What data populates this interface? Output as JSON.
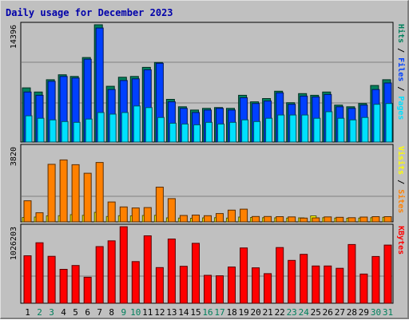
{
  "title": "Daily usage for December 2023",
  "colors": {
    "background": "#c0c0c0",
    "pages": "#00e0ff",
    "files": "#0040ff",
    "hits": "#00805c",
    "visits": "#ffff00",
    "sites": "#ff8000",
    "kbytes": "#ff0000",
    "title": "#0000aa",
    "weekend": "#00805c"
  },
  "chart_data": [
    {
      "type": "bar",
      "panel": "hits-files-pages",
      "max_label": "14396",
      "right_legend": [
        "Pages",
        "Files",
        "Hits"
      ],
      "categories": [
        "1",
        "2",
        "3",
        "4",
        "5",
        "6",
        "7",
        "8",
        "9",
        "10",
        "11",
        "12",
        "13",
        "14",
        "15",
        "16",
        "17",
        "18",
        "19",
        "20",
        "21",
        "22",
        "23",
        "24",
        "25",
        "26",
        "27",
        "28",
        "29",
        "30",
        "31"
      ],
      "ylim": [
        0,
        14396
      ],
      "series": [
        {
          "name": "Hits",
          "values": [
            6600,
            6100,
            7600,
            8200,
            8000,
            10300,
            14300,
            6800,
            7900,
            8000,
            9100,
            9700,
            5200,
            4300,
            3900,
            4100,
            4200,
            4100,
            5700,
            4900,
            5300,
            6200,
            4800,
            5900,
            5700,
            6100,
            4500,
            4300,
            4700,
            6900,
            7600
          ]
        },
        {
          "name": "Files",
          "values": [
            6100,
            5700,
            7400,
            8000,
            7800,
            10100,
            13900,
            6400,
            7500,
            7700,
            8800,
            9600,
            4900,
            4100,
            3600,
            3900,
            4100,
            3900,
            5400,
            4700,
            5000,
            6000,
            4600,
            5600,
            5500,
            5800,
            4300,
            4100,
            4500,
            6400,
            7200
          ]
        },
        {
          "name": "Pages",
          "values": [
            3200,
            2900,
            2700,
            2500,
            2400,
            2800,
            3600,
            3400,
            3600,
            4400,
            4200,
            3000,
            2300,
            2200,
            2100,
            2400,
            2200,
            2400,
            2700,
            2500,
            2900,
            3300,
            3300,
            3300,
            2900,
            3700,
            2900,
            2700,
            3000,
            4600,
            4700
          ]
        }
      ]
    },
    {
      "type": "bar",
      "panel": "sites-visits",
      "max_label": "3820",
      "right_legend": [
        "Sites",
        "Visits"
      ],
      "categories": [
        "1",
        "2",
        "3",
        "4",
        "5",
        "6",
        "7",
        "8",
        "9",
        "10",
        "11",
        "12",
        "13",
        "14",
        "15",
        "16",
        "17",
        "18",
        "19",
        "20",
        "21",
        "22",
        "23",
        "24",
        "25",
        "26",
        "27",
        "28",
        "29",
        "30",
        "31"
      ],
      "ylim": [
        0,
        3820
      ],
      "series": [
        {
          "name": "Visits",
          "values": [
            220,
            240,
            300,
            310,
            360,
            330,
            480,
            270,
            310,
            300,
            320,
            330,
            200,
            190,
            180,
            200,
            210,
            190,
            240,
            220,
            210,
            200,
            190,
            200,
            300,
            210,
            190,
            180,
            190,
            210,
            230
          ]
        },
        {
          "name": "Sites",
          "values": [
            1060,
            460,
            2900,
            3120,
            2880,
            2450,
            2990,
            1000,
            750,
            700,
            720,
            1750,
            1170,
            320,
            340,
            310,
            420,
            590,
            640,
            270,
            270,
            260,
            250,
            190,
            200,
            250,
            230,
            210,
            240,
            260,
            260
          ]
        }
      ]
    },
    {
      "type": "bar",
      "panel": "kbytes",
      "max_label": "1026203",
      "right_legend": [
        "KBytes"
      ],
      "categories": [
        "1",
        "2",
        "3",
        "4",
        "5",
        "6",
        "7",
        "8",
        "9",
        "10",
        "11",
        "12",
        "13",
        "14",
        "15",
        "16",
        "17",
        "18",
        "19",
        "20",
        "21",
        "22",
        "23",
        "24",
        "25",
        "26",
        "27",
        "28",
        "29",
        "30",
        "31"
      ],
      "ylim": [
        0,
        1026203
      ],
      "series": [
        {
          "name": "KBytes",
          "values": [
            630000,
            802000,
            622000,
            450000,
            500000,
            345000,
            751000,
            827000,
            1015000,
            552000,
            894000,
            473000,
            852000,
            490000,
            795000,
            370000,
            364000,
            480000,
            733000,
            470000,
            392000,
            738000,
            568000,
            648000,
            494000,
            494000,
            463000,
            779000,
            387000,
            620000,
            771000
          ]
        }
      ]
    }
  ],
  "x_axis": {
    "labels": [
      "1",
      "2",
      "3",
      "4",
      "5",
      "6",
      "7",
      "8",
      "9",
      "10",
      "11",
      "12",
      "13",
      "14",
      "15",
      "16",
      "17",
      "18",
      "19",
      "20",
      "21",
      "22",
      "23",
      "24",
      "25",
      "26",
      "27",
      "28",
      "29",
      "30",
      "31"
    ],
    "weekend_days": [
      "2",
      "3",
      "9",
      "10",
      "16",
      "17",
      "23",
      "24",
      "30",
      "31"
    ]
  }
}
